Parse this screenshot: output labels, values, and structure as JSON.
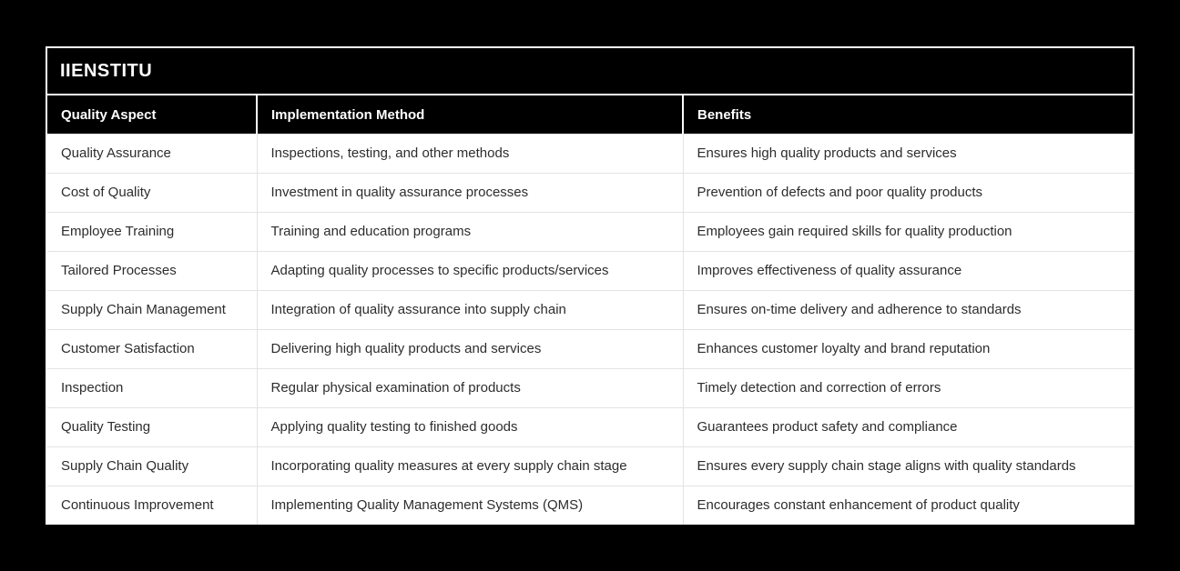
{
  "page": {
    "background_color": "#000000"
  },
  "card": {
    "brand": "IIENSTITU",
    "colors": {
      "card_bg": "#ffffff",
      "title_bar_bg": "#000000",
      "title_text": "#ffffff",
      "header_bg": "#000000",
      "header_text": "#ffffff",
      "body_text": "#2d2d2d",
      "divider": "#e3e3e3"
    }
  },
  "table": {
    "columns": [
      "Quality Aspect",
      "Implementation Method",
      "Benefits"
    ],
    "rows": [
      [
        "Quality Assurance",
        "Inspections, testing, and other methods",
        "Ensures high quality products and services"
      ],
      [
        "Cost of Quality",
        "Investment in quality assurance processes",
        "Prevention of defects and poor quality products"
      ],
      [
        "Employee Training",
        "Training and education programs",
        "Employees gain required skills for quality production"
      ],
      [
        "Tailored Processes",
        "Adapting quality processes to specific products/services",
        "Improves effectiveness of quality assurance"
      ],
      [
        "Supply Chain Management",
        "Integration of quality assurance into supply chain",
        "Ensures on-time delivery and adherence to standards"
      ],
      [
        "Customer Satisfaction",
        "Delivering high quality products and services",
        "Enhances customer loyalty and brand reputation"
      ],
      [
        "Inspection",
        "Regular physical examination of products",
        "Timely detection and correction of errors"
      ],
      [
        "Quality Testing",
        "Applying quality testing to finished goods",
        "Guarantees product safety and compliance"
      ],
      [
        "Supply Chain Quality",
        "Incorporating quality measures at every supply chain stage",
        "Ensures every supply chain stage aligns with quality standards"
      ],
      [
        "Continuous Improvement",
        "Implementing Quality Management Systems (QMS)",
        "Encourages constant enhancement of product quality"
      ]
    ]
  }
}
